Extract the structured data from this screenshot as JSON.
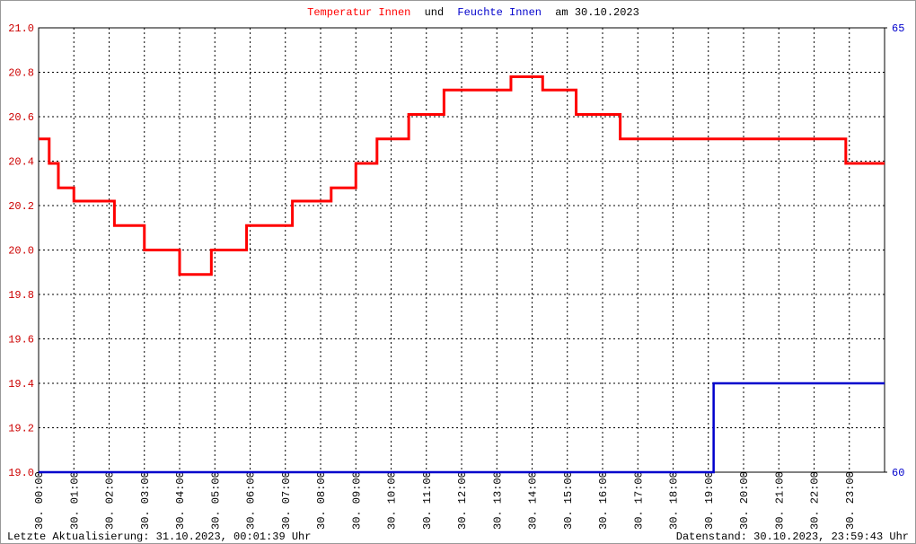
{
  "chart_data": {
    "type": "line",
    "title_connector": "und",
    "title_date": "am 30.10.2023",
    "xlim": [
      0,
      24
    ],
    "xticks": [
      {
        "value": 0,
        "label": "30. 00:00"
      },
      {
        "value": 1,
        "label": "30. 01:00"
      },
      {
        "value": 2,
        "label": "30. 02:00"
      },
      {
        "value": 3,
        "label": "30. 03:00"
      },
      {
        "value": 4,
        "label": "30. 04:00"
      },
      {
        "value": 5,
        "label": "30. 05:00"
      },
      {
        "value": 6,
        "label": "30. 06:00"
      },
      {
        "value": 7,
        "label": "30. 07:00"
      },
      {
        "value": 8,
        "label": "30. 08:00"
      },
      {
        "value": 9,
        "label": "30. 09:00"
      },
      {
        "value": 10,
        "label": "30. 10:00"
      },
      {
        "value": 11,
        "label": "30. 11:00"
      },
      {
        "value": 12,
        "label": "30. 12:00"
      },
      {
        "value": 13,
        "label": "30. 13:00"
      },
      {
        "value": 14,
        "label": "30. 14:00"
      },
      {
        "value": 15,
        "label": "30. 15:00"
      },
      {
        "value": 16,
        "label": "30. 16:00"
      },
      {
        "value": 17,
        "label": "30. 17:00"
      },
      {
        "value": 18,
        "label": "30. 18:00"
      },
      {
        "value": 19,
        "label": "30. 19:00"
      },
      {
        "value": 20,
        "label": "30. 20:00"
      },
      {
        "value": 21,
        "label": "30. 21:00"
      },
      {
        "value": 22,
        "label": "30. 22:00"
      },
      {
        "value": 23,
        "label": "30. 23:00"
      }
    ],
    "ylim": [
      19.0,
      21.0
    ],
    "yticks": [
      {
        "value": 19.0,
        "label": "19.0"
      },
      19.2,
      19.4,
      19.6,
      19.8,
      {
        "value": 20.0,
        "label": "20.0"
      },
      20.2,
      20.4,
      20.6,
      20.8,
      {
        "value": 21.0,
        "label": "21.0"
      }
    ],
    "y2lim": [
      60,
      65
    ],
    "y2ticks": [
      60,
      65
    ],
    "grid": true,
    "series": [
      {
        "name": "Temperatur Innen",
        "color": "#ff0000",
        "axis": "y",
        "x": [
          0,
          0.3,
          0.3,
          0.56,
          0.56,
          1.0,
          1.0,
          2.15,
          2.15,
          3.0,
          3.0,
          4.0,
          4.0,
          4.9,
          4.9,
          5.9,
          5.9,
          7.2,
          7.2,
          8.3,
          8.3,
          9.0,
          9.0,
          9.6,
          9.6,
          10.5,
          10.5,
          11.5,
          11.5,
          13.4,
          13.4,
          14.3,
          14.3,
          15.25,
          15.25,
          16.5,
          16.5,
          22.9,
          22.9,
          24
        ],
        "values": [
          20.5,
          20.5,
          20.39,
          20.39,
          20.28,
          20.28,
          20.22,
          20.22,
          20.11,
          20.11,
          20.0,
          20.0,
          19.89,
          19.89,
          20.0,
          20.0,
          20.11,
          20.11,
          20.22,
          20.22,
          20.28,
          20.28,
          20.39,
          20.39,
          20.5,
          20.5,
          20.61,
          20.61,
          20.72,
          20.72,
          20.78,
          20.78,
          20.72,
          20.72,
          20.61,
          20.61,
          20.5,
          20.5,
          20.39,
          20.39
        ]
      },
      {
        "name": "Feuchte Innen",
        "color": "#0000cc",
        "axis": "y2",
        "x": [
          0,
          19.15,
          19.15,
          24
        ],
        "values": [
          60,
          60,
          61,
          61
        ]
      }
    ],
    "footer_left": "Letzte Aktualisierung: 31.10.2023, 00:01:39 Uhr",
    "footer_right": "Datenstand: 30.10.2023, 23:59:43 Uhr"
  }
}
